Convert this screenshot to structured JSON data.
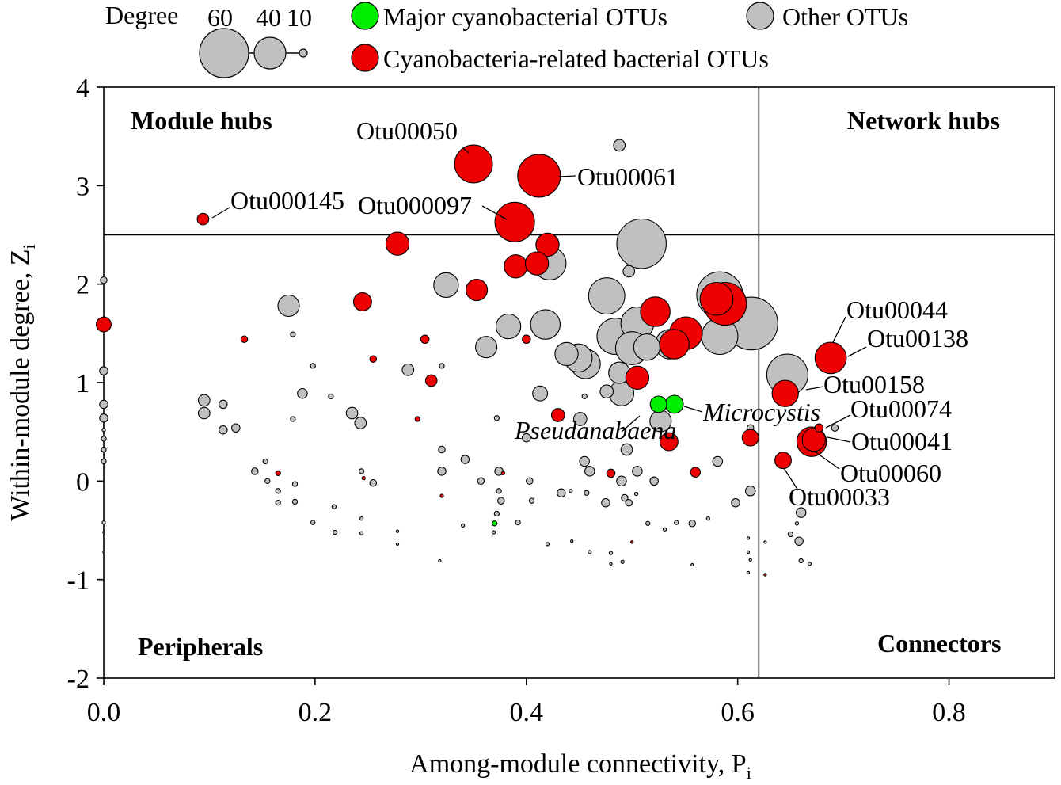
{
  "chart_data": {
    "type": "scatter",
    "xlabel": "Among-module connectivity, P",
    "xlabel_sub": "i",
    "ylabel": "Within-module degree, Z",
    "ylabel_sub": "i",
    "xlim": [
      0.0,
      0.9
    ],
    "ylim": [
      -2,
      4
    ],
    "xticks": [
      {
        "value": 0.0,
        "label": "0.0"
      },
      {
        "value": 0.2,
        "label": "0.2"
      },
      {
        "value": 0.4,
        "label": "0.4"
      },
      {
        "value": 0.6,
        "label": "0.6"
      },
      {
        "value": 0.8,
        "label": "0.8"
      }
    ],
    "yticks": [
      {
        "value": 4,
        "label": "4"
      },
      {
        "value": 3,
        "label": "3"
      },
      {
        "value": 2,
        "label": "2"
      },
      {
        "value": 1,
        "label": "1"
      },
      {
        "value": 0,
        "label": "0"
      },
      {
        "value": -1,
        "label": "-1"
      },
      {
        "value": -2,
        "label": "-2"
      }
    ],
    "thresholds": {
      "x": 0.62,
      "y": 2.5
    },
    "quadrant_labels": {
      "module_hubs": "Module hubs",
      "network_hubs": "Network hubs",
      "peripherals": "Peripherals",
      "connectors": "Connectors"
    },
    "legend": {
      "degree_title": "Degree",
      "degree_sizes": [
        {
          "label": "60",
          "degree": 60
        },
        {
          "label": "40",
          "degree": 40
        },
        {
          "label": "10",
          "degree": 10
        }
      ],
      "categories": [
        {
          "key": "major",
          "label": "Major cyanobacterial OTUs",
          "color": "#00ee00"
        },
        {
          "key": "other",
          "label": "Other OTUs",
          "color": "#c0c0c0"
        },
        {
          "key": "related",
          "label": "Cyanobacteria-related bacterial OTUs",
          "color": "#ee0000"
        }
      ]
    },
    "series": [
      {
        "name": "Other OTUs",
        "category": "other",
        "points": [
          [
            0.488,
            3.41,
            14
          ],
          [
            0.509,
            2.41,
            60
          ],
          [
            0.422,
            2.21,
            40
          ],
          [
            0.324,
            1.99,
            30
          ],
          [
            0.497,
            2.13,
            14
          ],
          [
            0.476,
            1.88,
            44
          ],
          [
            0.583,
            1.89,
            56
          ],
          [
            0.613,
            1.6,
            64
          ],
          [
            0.418,
            1.59,
            36
          ],
          [
            0.383,
            1.57,
            30
          ],
          [
            0.505,
            1.6,
            40
          ],
          [
            0.484,
            1.47,
            44
          ],
          [
            0.5,
            1.35,
            40
          ],
          [
            0.514,
            1.36,
            32
          ],
          [
            0.536,
            1.39,
            36
          ],
          [
            0.583,
            1.47,
            44
          ],
          [
            0.362,
            1.36,
            26
          ],
          [
            0.438,
            1.29,
            28
          ],
          [
            0.449,
            1.25,
            34
          ],
          [
            0.456,
            1.19,
            36
          ],
          [
            0.488,
            1.1,
            26
          ],
          [
            0.49,
            0.89,
            30
          ],
          [
            0.476,
            0.91,
            16
          ],
          [
            0.413,
            0.89,
            18
          ],
          [
            0.647,
            1.08,
            50
          ],
          [
            0.527,
            0.61,
            26
          ],
          [
            0.175,
            1.78,
            26
          ],
          [
            0.0,
            2.04,
            8
          ],
          [
            0.0,
            1.12,
            10
          ],
          [
            0.095,
            0.82,
            14
          ],
          [
            0.095,
            0.69,
            14
          ],
          [
            0.113,
            0.78,
            10
          ],
          [
            0.113,
            0.52,
            10
          ],
          [
            0.125,
            0.54,
            10
          ],
          [
            0.188,
            0.89,
            12
          ],
          [
            0.235,
            0.69,
            14
          ],
          [
            0.243,
            0.59,
            14
          ],
          [
            0.288,
            1.13,
            14
          ],
          [
            0.179,
            1.49,
            6
          ],
          [
            0.198,
            1.17,
            6
          ],
          [
            0.215,
            0.86,
            6
          ],
          [
            0.179,
            0.63,
            6
          ],
          [
            0.32,
            1.17,
            6
          ],
          [
            0.372,
            0.64,
            6
          ],
          [
            0.451,
            0.63,
            16
          ],
          [
            0.4,
            0.44,
            10
          ],
          [
            0.455,
            0.86,
            6
          ],
          [
            0.495,
            0.32,
            14
          ],
          [
            0.32,
            0.32,
            8
          ],
          [
            0.342,
            0.22,
            10
          ],
          [
            0.32,
            0.1,
            10
          ],
          [
            0.374,
            0.1,
            10
          ],
          [
            0.357,
            0.0,
            8
          ],
          [
            0.403,
            0.0,
            8
          ],
          [
            0.455,
            0.2,
            12
          ],
          [
            0.46,
            0.1,
            12
          ],
          [
            0.49,
            0.0,
            12
          ],
          [
            0.505,
            0.1,
            12
          ],
          [
            0.521,
            0.0,
            10
          ],
          [
            0.581,
            0.2,
            12
          ],
          [
            0.612,
            0.54,
            8
          ],
          [
            0.692,
            0.54,
            8
          ],
          [
            0.0,
            0.78,
            10
          ],
          [
            0.0,
            0.64,
            10
          ],
          [
            0.0,
            0.43,
            6
          ],
          [
            0.0,
            0.32,
            6
          ],
          [
            0.0,
            0.2,
            6
          ],
          [
            0.143,
            0.1,
            8
          ],
          [
            0.153,
            0.2,
            6
          ],
          [
            0.155,
            0.0,
            6
          ],
          [
            0.165,
            -0.1,
            6
          ],
          [
            0.165,
            -0.22,
            6
          ],
          [
            0.181,
            -0.03,
            6
          ],
          [
            0.181,
            -0.21,
            6
          ],
          [
            0.198,
            -0.42,
            5
          ],
          [
            0.218,
            -0.26,
            5
          ],
          [
            0.219,
            -0.52,
            5
          ],
          [
            0.244,
            -0.38,
            4
          ],
          [
            0.244,
            -0.53,
            4
          ],
          [
            0.244,
            0.1,
            6
          ],
          [
            0.255,
            -0.02,
            8
          ],
          [
            0.278,
            -0.51,
            3
          ],
          [
            0.278,
            -0.64,
            3
          ],
          [
            0.318,
            -0.81,
            3
          ],
          [
            0.34,
            -0.45,
            4
          ],
          [
            0.369,
            -0.52,
            4
          ],
          [
            0.372,
            -0.33,
            6
          ],
          [
            0.376,
            -0.2,
            8
          ],
          [
            0.374,
            -0.1,
            6
          ],
          [
            0.392,
            -0.42,
            6
          ],
          [
            0.405,
            -0.2,
            6
          ],
          [
            0.42,
            -0.64,
            4
          ],
          [
            0.433,
            -0.12,
            10
          ],
          [
            0.442,
            -0.1,
            4
          ],
          [
            0.443,
            -0.61,
            3
          ],
          [
            0.457,
            -0.12,
            6
          ],
          [
            0.46,
            -0.72,
            4
          ],
          [
            0.475,
            -0.22,
            10
          ],
          [
            0.48,
            -0.73,
            4
          ],
          [
            0.48,
            -0.84,
            3
          ],
          [
            0.491,
            -0.82,
            4
          ],
          [
            0.493,
            -0.17,
            8
          ],
          [
            0.497,
            -0.22,
            8
          ],
          [
            0.504,
            -0.13,
            4
          ],
          [
            0.515,
            -0.43,
            5
          ],
          [
            0.531,
            -0.49,
            4
          ],
          [
            0.542,
            -0.42,
            5
          ],
          [
            0.557,
            -0.43,
            8
          ],
          [
            0.572,
            -0.38,
            4
          ],
          [
            0.557,
            -0.85,
            3
          ],
          [
            0.598,
            -0.22,
            10
          ],
          [
            0.612,
            -0.1,
            12
          ],
          [
            0.61,
            -0.58,
            3
          ],
          [
            0.61,
            -0.72,
            3
          ],
          [
            0.612,
            -0.8,
            3
          ],
          [
            0.61,
            -0.93,
            3
          ],
          [
            0.626,
            -0.62,
            3
          ],
          [
            0.66,
            -0.32,
            12
          ],
          [
            0.656,
            -0.43,
            4
          ],
          [
            0.658,
            -0.61,
            10
          ],
          [
            0.65,
            -0.54,
            6
          ],
          [
            0.66,
            -0.81,
            5
          ],
          [
            0.668,
            -0.84,
            4
          ],
          [
            0.0,
            0.52,
            4
          ],
          [
            0.0,
            -0.42,
            4
          ],
          [
            0.0,
            -0.52,
            2
          ],
          [
            0.0,
            -0.72,
            2
          ]
        ]
      },
      {
        "name": "Cyanobacteria-related bacterial OTUs",
        "category": "related",
        "points": [
          [
            0.35,
            3.22,
            46
          ],
          [
            0.412,
            3.1,
            52
          ],
          [
            0.389,
            2.63,
            48
          ],
          [
            0.094,
            2.66,
            14
          ],
          [
            0.278,
            2.41,
            28
          ],
          [
            0.42,
            2.4,
            28
          ],
          [
            0.39,
            2.18,
            28
          ],
          [
            0.41,
            2.21,
            28
          ],
          [
            0.353,
            1.94,
            26
          ],
          [
            0.245,
            1.82,
            22
          ],
          [
            0.0,
            1.59,
            18
          ],
          [
            0.133,
            1.44,
            8
          ],
          [
            0.304,
            1.44,
            10
          ],
          [
            0.4,
            1.44,
            10
          ],
          [
            0.255,
            1.24,
            8
          ],
          [
            0.31,
            1.02,
            14
          ],
          [
            0.297,
            0.63,
            6
          ],
          [
            0.43,
            0.67,
            16
          ],
          [
            0.505,
            1.05,
            28
          ],
          [
            0.522,
            1.72,
            36
          ],
          [
            0.54,
            1.39,
            36
          ],
          [
            0.551,
            1.5,
            40
          ],
          [
            0.588,
            1.8,
            52
          ],
          [
            0.58,
            1.85,
            40
          ],
          [
            0.688,
            1.25,
            38
          ],
          [
            0.645,
            0.89,
            32
          ],
          [
            0.677,
            0.54,
            10
          ],
          [
            0.67,
            0.4,
            36
          ],
          [
            0.672,
            0.42,
            28
          ],
          [
            0.612,
            0.44,
            20
          ],
          [
            0.643,
            0.21,
            20
          ],
          [
            0.535,
            0.4,
            22
          ],
          [
            0.56,
            0.09,
            12
          ],
          [
            0.48,
            0.08,
            10
          ],
          [
            0.165,
            0.08,
            6
          ],
          [
            0.32,
            -0.15,
            4
          ],
          [
            0.246,
            0.03,
            4
          ],
          [
            0.378,
            0.08,
            4
          ],
          [
            0.5,
            -0.62,
            3
          ],
          [
            0.626,
            -0.95,
            3
          ]
        ]
      },
      {
        "name": "Major cyanobacterial OTUs",
        "category": "major",
        "points": [
          [
            0.525,
            0.78,
            20
          ],
          [
            0.54,
            0.78,
            22
          ],
          [
            0.37,
            -0.43,
            6
          ]
        ]
      }
    ],
    "annotations": [
      {
        "text": "Otu00050",
        "italic": false
      },
      {
        "text": "Otu00061",
        "italic": false
      },
      {
        "text": "Otu000145",
        "italic": false
      },
      {
        "text": "Otu000097",
        "italic": false
      },
      {
        "text": "Otu00044",
        "italic": false
      },
      {
        "text": "Otu00138",
        "italic": false
      },
      {
        "text": "Otu00158",
        "italic": false
      },
      {
        "text": "Otu00074",
        "italic": false
      },
      {
        "text": "Otu00041",
        "italic": false
      },
      {
        "text": "Otu00060",
        "italic": false
      },
      {
        "text": "Otu00033",
        "italic": false
      },
      {
        "text": "Microcystis",
        "italic": true
      },
      {
        "text": "Pseudanabaena",
        "italic": true
      }
    ]
  }
}
